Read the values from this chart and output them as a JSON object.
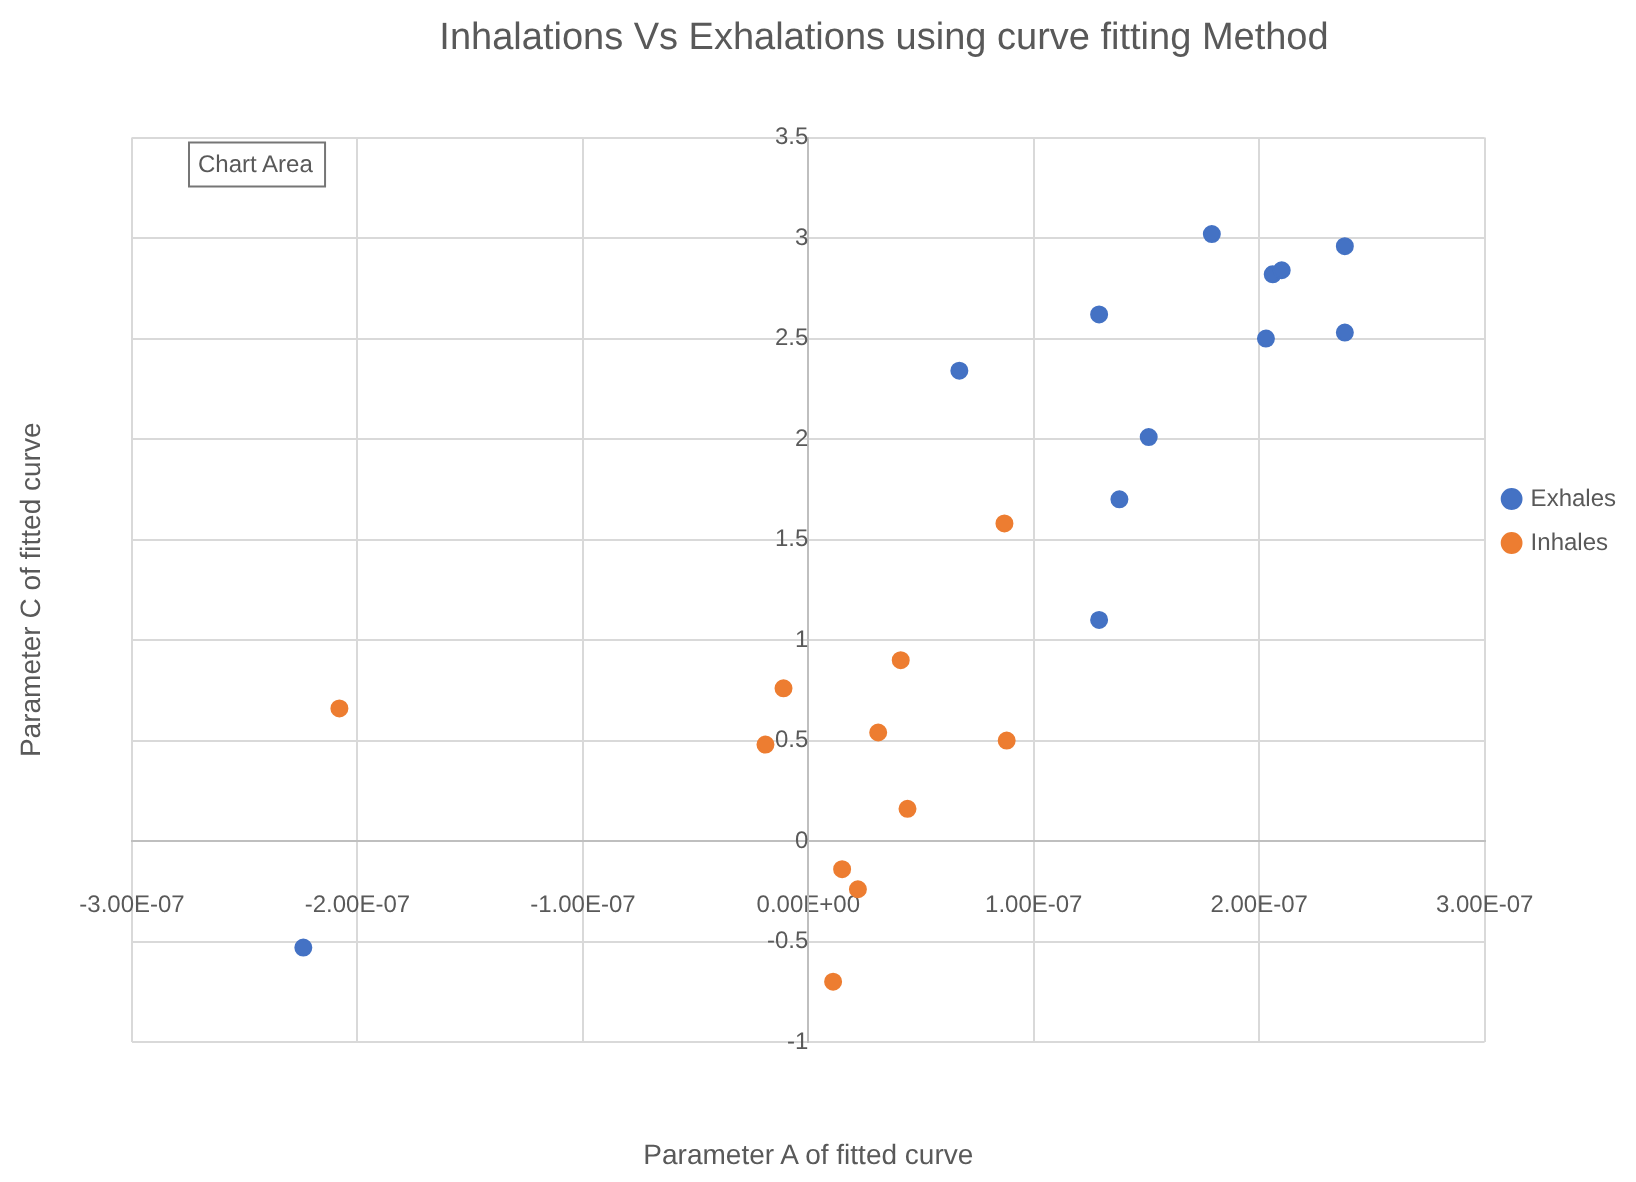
{
  "chart_data": {
    "type": "scatter",
    "title": "Inhalations Vs Exhalations using curve fitting Method",
    "xlabel": "Parameter A of fitted curve",
    "ylabel": "Parameter C of fitted curve",
    "annotations": [
      "Chart Area"
    ],
    "series": [
      {
        "name": "Exhales",
        "color": "#4472c4",
        "x": [
          -2.24e-07,
          6.7e-08,
          1.29e-07,
          1.79e-07,
          2.06e-07,
          2.1e-07,
          2.38e-07,
          2.03e-07,
          2.38e-07,
          1.51e-07,
          1.38e-07,
          1.29e-07
        ],
        "values": [
          -0.53,
          2.34,
          2.62,
          3.02,
          2.82,
          2.84,
          2.96,
          2.5,
          2.53,
          2.01,
          1.7,
          1.1
        ]
      },
      {
        "name": "Inhales",
        "color": "#ed7d31",
        "x": [
          -2.08e-07,
          -1.1e-08,
          -1.9e-08,
          4.1e-08,
          8.7e-08,
          3.1e-08,
          8.8e-08,
          4.4e-08,
          1.5e-08,
          2.2e-08,
          1.1e-08
        ],
        "values": [
          0.66,
          0.76,
          0.48,
          0.9,
          1.58,
          0.54,
          0.5,
          0.16,
          -0.14,
          -0.24,
          -0.7
        ]
      }
    ],
    "xlim": [
      -3e-07,
      3e-07
    ],
    "xticks": [
      {
        "value": -3e-07,
        "label": "-3.00E-07"
      },
      {
        "value": -2e-07,
        "label": "-2.00E-07"
      },
      {
        "value": -1e-07,
        "label": "-1.00E-07"
      },
      {
        "value": 0,
        "label": "0.00E+00"
      },
      {
        "value": 1e-07,
        "label": "1.00E-07"
      },
      {
        "value": 2e-07,
        "label": "2.00E-07"
      },
      {
        "value": 3e-07,
        "label": "3.00E-07"
      }
    ],
    "ylim": [
      -1,
      3.5
    ],
    "yticks": [
      -1,
      -0.5,
      0,
      0.5,
      1,
      1.5,
      2,
      2.5,
      3,
      3.5
    ],
    "grid": true,
    "legend": "right",
    "marker": "circle"
  }
}
